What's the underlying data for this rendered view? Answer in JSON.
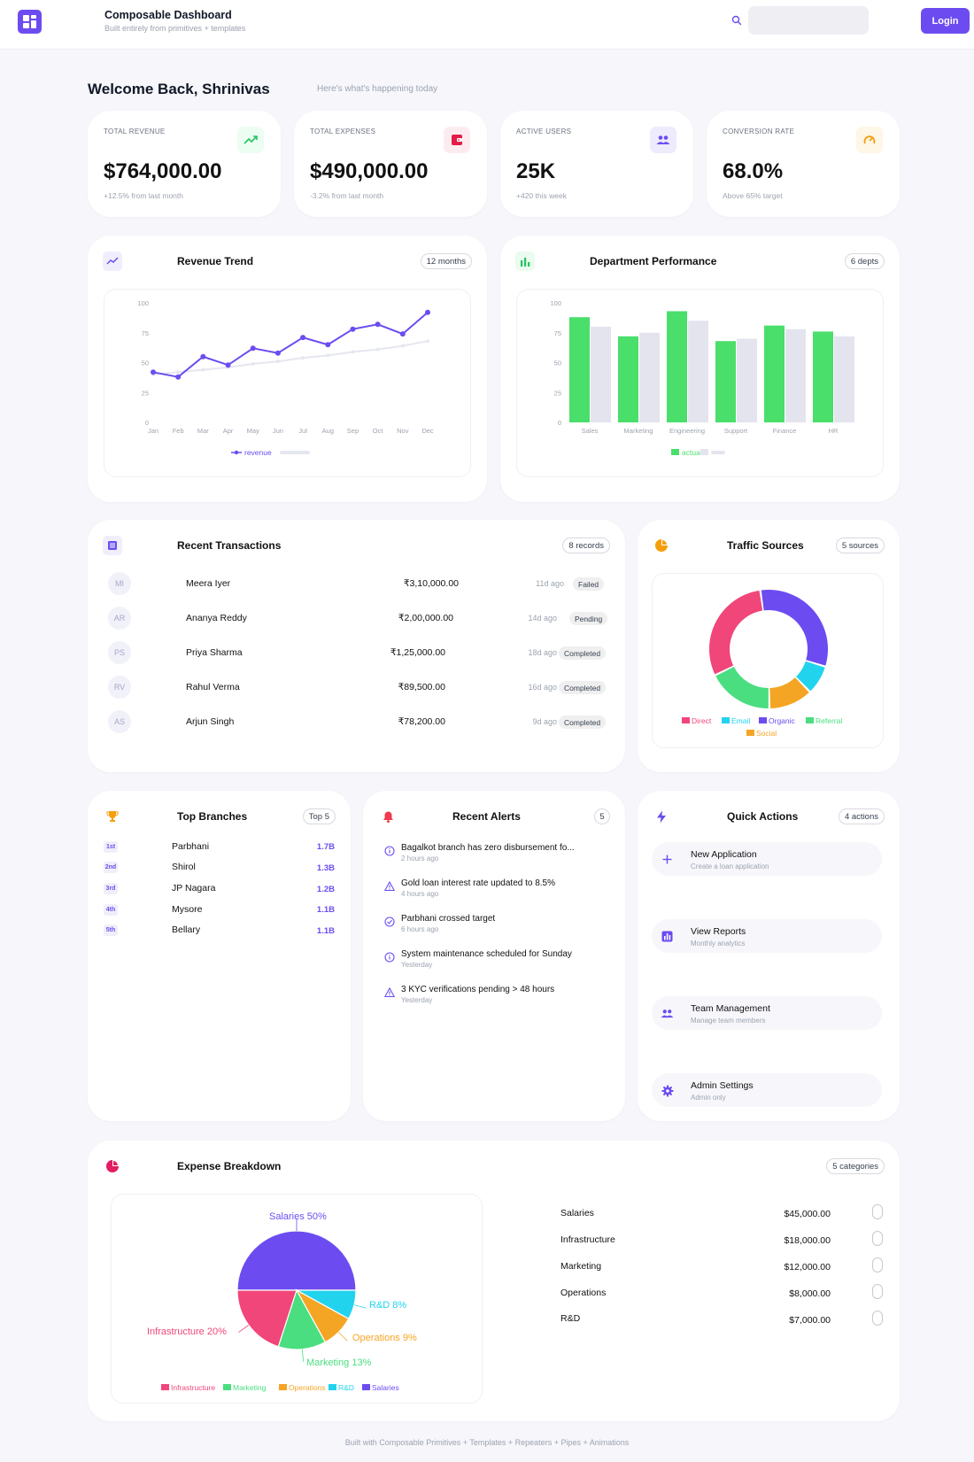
{
  "header": {
    "title": "Composable Dashboard",
    "subtitle": "Built entirely from primitives + templates",
    "search_placeholder": "",
    "login_label": "Login"
  },
  "welcome": {
    "title": "Welcome Back, Shrinivas",
    "subtitle": "Here's what's happening today"
  },
  "kpis": [
    {
      "label": "TOTAL REVENUE",
      "value": "$764,000.00",
      "note": "+12.5% from last month",
      "icon": "trending-up-icon",
      "color": "#22c55e"
    },
    {
      "label": "TOTAL EXPENSES",
      "value": "$490,000.00",
      "note": "-3.2% from last month",
      "icon": "wallet-icon",
      "color": "#e11d48"
    },
    {
      "label": "ACTIVE USERS",
      "value": "25K",
      "note": "+420 this week",
      "icon": "users-icon",
      "color": "#6c4cf1"
    },
    {
      "label": "CONVERSION RATE",
      "value": "68.0%",
      "note": "Above 65% target",
      "icon": "gauge-icon",
      "color": "#f59e0b"
    }
  ],
  "revenue_trend": {
    "title": "Revenue Trend",
    "pill": "12 months",
    "legend": "revenue"
  },
  "department_performance": {
    "title": "Department Performance",
    "pill": "6 depts",
    "legend": "actual"
  },
  "transactions": {
    "title": "Recent Transactions",
    "pill": "8 records",
    "rows": [
      {
        "initials": "MI",
        "name": "Meera Iyer",
        "amount": "₹3,10,000.00",
        "ago": "11d ago",
        "status": "Failed"
      },
      {
        "initials": "AR",
        "name": "Ananya Reddy",
        "amount": "₹2,00,000.00",
        "ago": "14d ago",
        "status": "Pending"
      },
      {
        "initials": "PS",
        "name": "Priya Sharma",
        "amount": "₹1,25,000.00",
        "ago": "18d ago",
        "status": "Completed"
      },
      {
        "initials": "RV",
        "name": "Rahul Verma",
        "amount": "₹89,500.00",
        "ago": "16d ago",
        "status": "Completed"
      },
      {
        "initials": "AS",
        "name": "Arjun Singh",
        "amount": "₹78,200.00",
        "ago": "9d ago",
        "status": "Completed"
      }
    ]
  },
  "traffic": {
    "title": "Traffic Sources",
    "pill": "5 sources"
  },
  "branches": {
    "title": "Top Branches",
    "pill": "Top 5",
    "rows": [
      {
        "rank": "1st",
        "name": "Parbhani",
        "value": "1.7B"
      },
      {
        "rank": "2nd",
        "name": "Shirol",
        "value": "1.3B"
      },
      {
        "rank": "3rd",
        "name": "JP Nagara",
        "value": "1.2B"
      },
      {
        "rank": "4th",
        "name": "Mysore",
        "value": "1.1B"
      },
      {
        "rank": "5th",
        "name": "Bellary",
        "value": "1.1B"
      }
    ]
  },
  "alerts": {
    "title": "Recent Alerts",
    "pill": "5",
    "rows": [
      {
        "type": "info",
        "title": "Bagalkot branch has zero disbursement fo...",
        "time": "2 hours ago"
      },
      {
        "type": "warning",
        "title": "Gold loan interest rate updated to 8.5%",
        "time": "4 hours ago"
      },
      {
        "type": "success",
        "title": "Parbhani crossed target",
        "time": "6 hours ago"
      },
      {
        "type": "info",
        "title": "System maintenance scheduled for Sunday",
        "time": "Yesterday"
      },
      {
        "type": "warning",
        "title": "3 KYC verifications pending > 48 hours",
        "time": "Yesterday"
      }
    ]
  },
  "quick_actions": {
    "title": "Quick Actions",
    "pill": "4 actions",
    "items": [
      {
        "title": "New Application",
        "sub": "Create a loan application",
        "icon": "plus-icon"
      },
      {
        "title": "View Reports",
        "sub": "Monthly analytics",
        "icon": "bar-chart-icon"
      },
      {
        "title": "Team Management",
        "sub": "Manage team members",
        "icon": "users-icon"
      },
      {
        "title": "Admin Settings",
        "sub": "Admin only",
        "icon": "gear-icon"
      }
    ]
  },
  "expense": {
    "title": "Expense Breakdown",
    "pill": "5 categories",
    "items": [
      {
        "name": "Salaries",
        "amount": "$45,000.00"
      },
      {
        "name": "Infrastructure",
        "amount": "$18,000.00"
      },
      {
        "name": "Marketing",
        "amount": "$12,000.00"
      },
      {
        "name": "Operations",
        "amount": "$8,000.00"
      },
      {
        "name": "R&D",
        "amount": "$7,000.00"
      }
    ]
  },
  "footer": "Built with Composable Primitives + Templates + Repeaters + Pipes + Animations",
  "chart_data": [
    {
      "type": "line",
      "x": [
        "Jan",
        "Feb",
        "Mar",
        "Apr",
        "May",
        "Jun",
        "Jul",
        "Aug",
        "Sep",
        "Oct",
        "Nov",
        "Dec"
      ],
      "series": [
        {
          "name": "revenue",
          "color": "#6c4cf1",
          "values": [
            42,
            38,
            55,
            48,
            62,
            58,
            71,
            65,
            78,
            82,
            74,
            92
          ]
        },
        {
          "name": "",
          "color": "#e5e7f0",
          "values": [
            40,
            42,
            44,
            46,
            49,
            51,
            54,
            56,
            59,
            61,
            64,
            68
          ]
        }
      ],
      "yticks": [
        0,
        25,
        50,
        75,
        100
      ],
      "ylim": [
        0,
        100
      ],
      "title": "Revenue Trend",
      "legend": "bottom"
    },
    {
      "type": "bar",
      "categories": [
        "Sales",
        "Marketing",
        "Engineering",
        "Support",
        "Finance",
        "HR"
      ],
      "series": [
        {
          "name": "actual",
          "color": "#4ade6b",
          "values": [
            88,
            72,
            93,
            68,
            81,
            76
          ]
        },
        {
          "name": "",
          "color": "#e4e4ee",
          "values": [
            80,
            75,
            85,
            70,
            78,
            72
          ]
        }
      ],
      "yticks": [
        0,
        25,
        50,
        75,
        100
      ],
      "ylim": [
        0,
        100
      ],
      "title": "Department Performance",
      "legend": "bottom"
    },
    {
      "type": "pie",
      "title": "Traffic Sources",
      "donut": true,
      "slices": [
        {
          "name": "Organic",
          "value": 32,
          "color": "#6c4cf1"
        },
        {
          "name": "Email",
          "value": 8,
          "color": "#22d3ee"
        },
        {
          "name": "Social",
          "value": 12,
          "color": "#f5a524"
        },
        {
          "name": "Referral",
          "value": 18,
          "color": "#4ade80"
        },
        {
          "name": "Direct",
          "value": 30,
          "color": "#f0467a"
        }
      ],
      "legend": [
        "Direct",
        "Email",
        "Organic",
        "Referral",
        "Social"
      ],
      "legend_position": "bottom"
    },
    {
      "type": "pie",
      "title": "Expense Breakdown",
      "slices": [
        {
          "name": "Salaries",
          "value": 50,
          "label": "Salaries 50%",
          "color": "#6c4cf1"
        },
        {
          "name": "R&D",
          "value": 8,
          "label": "R&D 8%",
          "color": "#22d3ee"
        },
        {
          "name": "Operations",
          "value": 9,
          "label": "Operations 9%",
          "color": "#f5a524"
        },
        {
          "name": "Marketing",
          "value": 13,
          "label": "Marketing 13%",
          "color": "#4ade80"
        },
        {
          "name": "Infrastructure",
          "value": 20,
          "label": "Infrastructure 20%",
          "color": "#f0467a"
        }
      ],
      "legend": [
        "Infrastructure",
        "Marketing",
        "Operations",
        "R&D",
        "Salaries"
      ],
      "legend_position": "bottom"
    }
  ]
}
